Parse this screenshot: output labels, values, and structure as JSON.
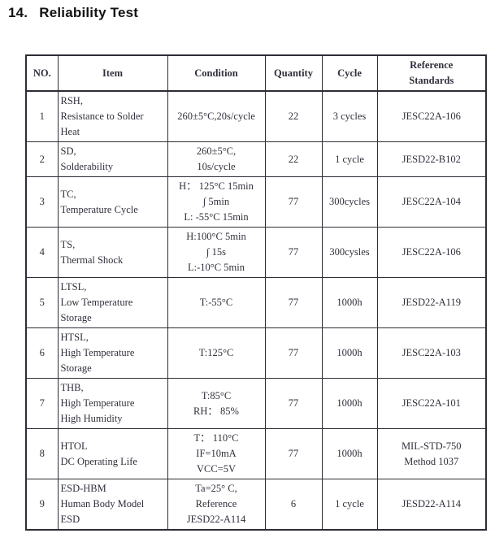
{
  "heading": {
    "number": "14.",
    "text": "Reliability Test"
  },
  "colors": {
    "page_background": "#ffffff",
    "heading_text": "#131313",
    "table_text": "#30303c",
    "table_border": "#2d2d36"
  },
  "table": {
    "header": {
      "no": "NO.",
      "item": "Item",
      "condition": "Condition",
      "quantity": "Quantity",
      "cycle": "Cycle",
      "reference_line1": "Reference",
      "reference_line2": "Standards"
    },
    "rows": [
      {
        "no": "1",
        "item": [
          "RSH,",
          "Resistance to Solder",
          "Heat"
        ],
        "condition": [
          "260±5°C,20s/cycle"
        ],
        "quantity": "22",
        "cycle": "3 cycles",
        "reference": [
          "JESC22A-106"
        ]
      },
      {
        "no": "2",
        "item": [
          "SD,",
          "Solderability"
        ],
        "condition": [
          "260±5°C,",
          "10s/cycle"
        ],
        "quantity": "22",
        "cycle": "1 cycle",
        "reference": [
          "JESD22-B102"
        ]
      },
      {
        "no": "3",
        "item": [
          "TC,",
          "Temperature Cycle"
        ],
        "condition": [
          "H： 125°C 15min",
          "∫ 5min",
          "L: -55°C 15min"
        ],
        "quantity": "77",
        "cycle": "300cycles",
        "reference": [
          "JESC22A-104"
        ]
      },
      {
        "no": "4",
        "item": [
          "TS,",
          "Thermal Shock"
        ],
        "condition": [
          "H:100°C 5min",
          "∫ 15s",
          "L:-10°C 5min"
        ],
        "quantity": "77",
        "cycle": "300cysles",
        "reference": [
          "JESC22A-106"
        ]
      },
      {
        "no": "5",
        "item": [
          "LTSL,",
          "Low Temperature",
          "Storage"
        ],
        "condition": [
          "T:-55°C"
        ],
        "quantity": "77",
        "cycle": "1000h",
        "reference": [
          "JESD22-A119"
        ]
      },
      {
        "no": "6",
        "item": [
          "HTSL,",
          "High Temperature",
          "Storage"
        ],
        "condition": [
          "T:125°C"
        ],
        "quantity": "77",
        "cycle": "1000h",
        "reference": [
          "JESC22A-103"
        ]
      },
      {
        "no": "7",
        "item": [
          "THB,",
          "High Temperature",
          "High Humidity"
        ],
        "condition": [
          "T:85°C",
          "RH： 85%"
        ],
        "quantity": "77",
        "cycle": "1000h",
        "reference": [
          "JESC22A-101"
        ]
      },
      {
        "no": "8",
        "item": [
          "HTOL",
          "DC Operating Life"
        ],
        "condition": [
          "T： 110°C",
          "IF=10mA",
          "VCC=5V"
        ],
        "quantity": "77",
        "cycle": "1000h",
        "reference": [
          "MIL-STD-750",
          "Method 1037"
        ]
      },
      {
        "no": "9",
        "item": [
          "ESD-HBM",
          "Human Body Model",
          "ESD"
        ],
        "condition": [
          "Ta=25° C,",
          "Reference",
          "JESD22-A114"
        ],
        "quantity": "6",
        "cycle": "1 cycle",
        "reference": [
          "JESD22-A114"
        ]
      }
    ]
  }
}
